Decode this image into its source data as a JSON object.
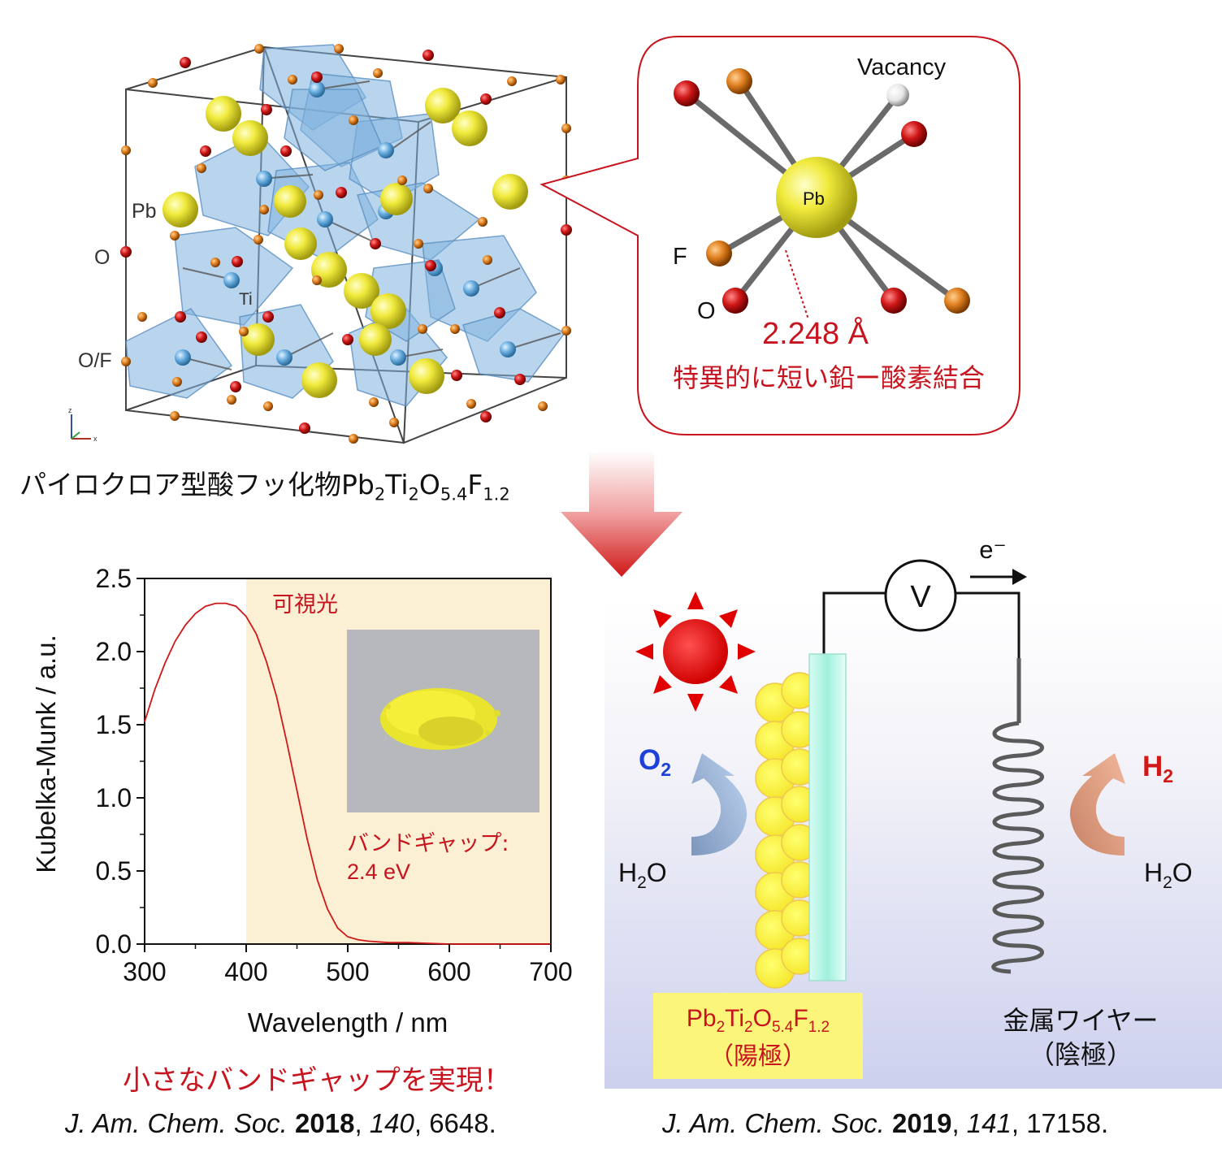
{
  "crystal": {
    "labels": {
      "pb": "Pb",
      "o": "O",
      "ti": "Ti",
      "of": "O/F"
    },
    "axes": {
      "z": "z",
      "x": "x"
    },
    "caption_prefix": "パイロクロア型酸フッ化物Pb",
    "caption_sub1": "2",
    "caption_ti": "Ti",
    "caption_sub2": "2",
    "caption_o": "O",
    "caption_sub3": "5.4",
    "caption_f": "F",
    "caption_sub4": "1.2"
  },
  "bond_detail": {
    "vacancy": "Vacancy",
    "pb": "Pb",
    "f": "F",
    "o": "O",
    "bond_length": "2.248 Å",
    "note": "特異的に短い鉛ー酸素結合"
  },
  "colors": {
    "red_text": "#c8141e",
    "pb_yellow": "#e8e23a",
    "oxygen_red": "#c8141e",
    "fluorine_orange": "#d97a1a",
    "ti_blue": "#6aaee0",
    "visible_band": "#fbf0d4",
    "highlight_box": "#fbf57a"
  },
  "chart_data": {
    "type": "line",
    "xlabel": "Wavelength / nm",
    "ylabel": "Kubelka-Munk / a.u.",
    "xlim": [
      300,
      700
    ],
    "ylim": [
      0,
      2.5
    ],
    "xticks": [
      "300",
      "400",
      "500",
      "600",
      "700"
    ],
    "yticks": [
      "0.0",
      "0.5",
      "1.0",
      "1.5",
      "2.0",
      "2.5"
    ],
    "visible_region_start": 400,
    "visible_label": "可視光",
    "bandgap_label": "バンドギャップ:",
    "bandgap_value": "2.4 eV",
    "series": [
      {
        "x": [
          300,
          310,
          320,
          330,
          340,
          350,
          360,
          370,
          380,
          390,
          400,
          410,
          420,
          430,
          440,
          450,
          460,
          470,
          480,
          490,
          500,
          510,
          520,
          540,
          560,
          600,
          650,
          700
        ],
        "y": [
          1.52,
          1.74,
          1.92,
          2.07,
          2.18,
          2.26,
          2.31,
          2.33,
          2.33,
          2.31,
          2.24,
          2.12,
          1.93,
          1.69,
          1.38,
          1.05,
          0.72,
          0.44,
          0.24,
          0.11,
          0.05,
          0.03,
          0.02,
          0.01,
          0.01,
          0.0,
          0.0,
          0.0
        ]
      }
    ]
  },
  "conclusion": "小さなバンドギャップを実現！",
  "citation1": {
    "journal": "J. Am. Chem. Soc.",
    "year": "2018",
    "volume": "140",
    "pages": ", 6648."
  },
  "citation2": {
    "journal": "J. Am. Chem. Soc.",
    "year": "2019",
    "volume": "141",
    "pages": ", 17158."
  },
  "cell": {
    "electron": "e⁻",
    "voltmeter": "V",
    "o2_main": "O",
    "o2_sub": "2",
    "h2_main": "H",
    "h2_sub": "2",
    "h2o_left_a": "H",
    "h2o_left_sub": "2",
    "h2o_left_b": "O",
    "h2o_right_a": "H",
    "h2o_right_sub": "2",
    "h2o_right_b": "O",
    "anode_formula_a": "Pb",
    "anode_sub1": "2",
    "anode_formula_b": "Ti",
    "anode_sub2": "2",
    "anode_formula_c": "O",
    "anode_sub3": "5.4",
    "anode_formula_d": "F",
    "anode_sub4": "1.2",
    "anode_role": "（陽極）",
    "cathode_name": "金属ワイヤー",
    "cathode_role": "（陰極）"
  }
}
